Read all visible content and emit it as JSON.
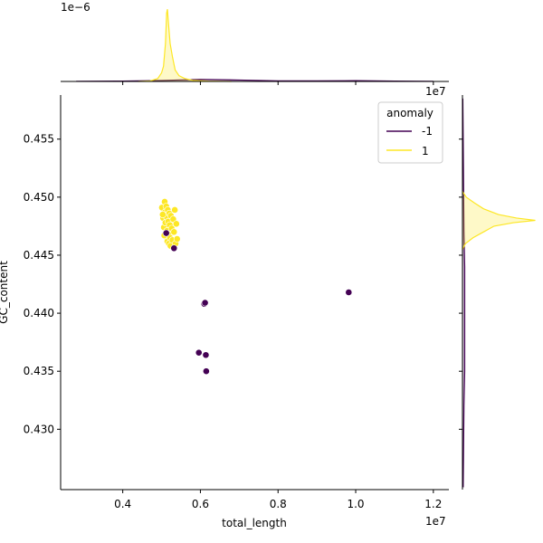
{
  "chart_data": {
    "type": "scatter",
    "xlabel": "total_length",
    "ylabel": "GC_content",
    "x_offset_text": "1e7",
    "top_marginal_offset_text": "1e−6",
    "xlim": [
      2400000,
      12400000
    ],
    "ylim": [
      0.4248,
      0.4588
    ],
    "x_ticks": [
      4000000,
      6000000,
      8000000,
      10000000,
      12000000
    ],
    "x_tick_labels": [
      "0.4",
      "0.6",
      "0.8",
      "1.0",
      "1.2"
    ],
    "y_ticks": [
      0.43,
      0.435,
      0.44,
      0.445,
      0.45,
      0.455
    ],
    "y_tick_labels": [
      "0.430",
      "0.435",
      "0.440",
      "0.445",
      "0.450",
      "0.455"
    ],
    "grid": false,
    "legend": {
      "title": "anomaly",
      "placement": "upper-right"
    },
    "series": [
      {
        "name": "-1",
        "color": "#440154",
        "points": [
          [
            5320000,
            0.4456
          ],
          [
            5120000,
            0.4469
          ],
          [
            6100000,
            0.4408
          ],
          [
            6120000,
            0.4409
          ],
          [
            9820000,
            0.4418
          ],
          [
            5960000,
            0.4366
          ],
          [
            6140000,
            0.4364
          ],
          [
            6150000,
            0.435
          ]
        ]
      },
      {
        "name": "1",
        "color": "#fde725",
        "points": [
          [
            5010000,
            0.4491
          ],
          [
            5040000,
            0.4482
          ],
          [
            5060000,
            0.4474
          ],
          [
            5080000,
            0.4496
          ],
          [
            5090000,
            0.4487
          ],
          [
            5100000,
            0.4478
          ],
          [
            5110000,
            0.4466
          ],
          [
            5120000,
            0.4492
          ],
          [
            5130000,
            0.4483
          ],
          [
            5140000,
            0.4471
          ],
          [
            5150000,
            0.4462
          ],
          [
            5160000,
            0.4489
          ],
          [
            5170000,
            0.4479
          ],
          [
            5180000,
            0.4468
          ],
          [
            5190000,
            0.446
          ],
          [
            5200000,
            0.4486
          ],
          [
            5210000,
            0.4476
          ],
          [
            5220000,
            0.4465
          ],
          [
            5230000,
            0.4458
          ],
          [
            5240000,
            0.4484
          ],
          [
            5260000,
            0.4473
          ],
          [
            5280000,
            0.4463
          ],
          [
            5300000,
            0.4481
          ],
          [
            5320000,
            0.447
          ],
          [
            5340000,
            0.4489
          ],
          [
            5360000,
            0.446
          ],
          [
            5380000,
            0.4477
          ],
          [
            5400000,
            0.4464
          ],
          [
            5070000,
            0.4467
          ],
          [
            5030000,
            0.4485
          ]
        ]
      }
    ],
    "marginal_x": {
      "series": [
        {
          "name": "-1",
          "x": [
            2800000,
            4000000,
            5000000,
            6000000,
            7000000,
            8000000,
            9000000,
            10000000,
            11000000,
            12000000
          ],
          "density": [
            0.001,
            0.004,
            0.01,
            0.022,
            0.015,
            0.006,
            0.006,
            0.008,
            0.004,
            0.001
          ]
        },
        {
          "name": "1",
          "x": [
            4400000,
            4700000,
            4900000,
            5000000,
            5050000,
            5100000,
            5130000,
            5150000,
            5180000,
            5220000,
            5280000,
            5350000,
            5450000,
            5600000,
            5800000,
            6200000,
            6800000
          ],
          "density": [
            0.0,
            0.005,
            0.03,
            0.09,
            0.16,
            0.4,
            0.72,
            0.76,
            0.6,
            0.4,
            0.26,
            0.12,
            0.06,
            0.03,
            0.012,
            0.004,
            0.0
          ]
        }
      ],
      "ymax": 0.8
    },
    "marginal_y": {
      "series": [
        {
          "name": "-1",
          "y": [
            0.425,
            0.432,
            0.435,
            0.437,
            0.44,
            0.442,
            0.444,
            0.447,
            0.455,
            0.4585
          ],
          "density": [
            0.01,
            0.02,
            0.03,
            0.03,
            0.03,
            0.03,
            0.03,
            0.02,
            0.01,
            0.005
          ]
        },
        {
          "name": "1",
          "y": [
            0.4455,
            0.446,
            0.4465,
            0.447,
            0.4475,
            0.4478,
            0.448,
            0.4482,
            0.4485,
            0.449,
            0.4495,
            0.45,
            0.4505
          ],
          "density": [
            0.0,
            0.04,
            0.14,
            0.28,
            0.42,
            0.68,
            0.97,
            0.72,
            0.48,
            0.28,
            0.16,
            0.05,
            0.0
          ]
        }
      ],
      "xmax": 1.0
    }
  }
}
